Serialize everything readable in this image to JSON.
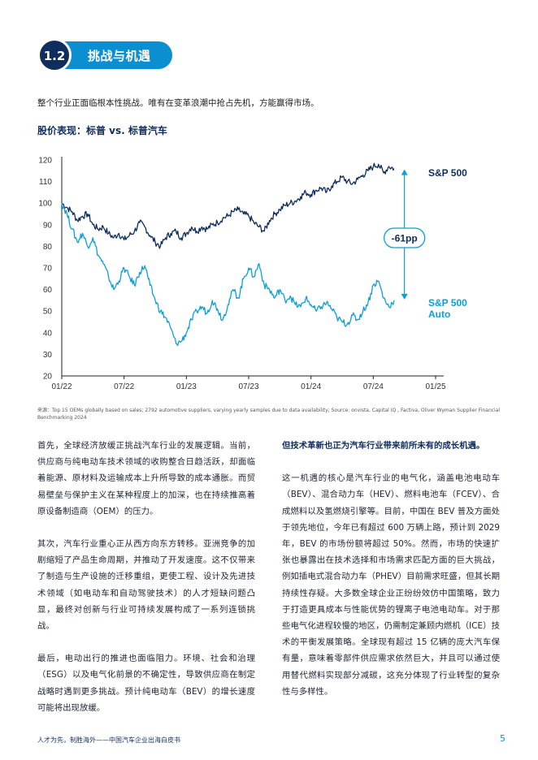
{
  "section": {
    "number": "1.2",
    "title": "挑战与机遇"
  },
  "intro": "整个行业正面临根本性挑战。唯有在变革浪潮中抢占先机，方能赢得市场。",
  "chart_title": "股价表现：标普 vs. 标普汽车",
  "chart_data": {
    "type": "line",
    "title": "股价表现：标普 vs. 标普汽车",
    "x_ticks": [
      "01/22",
      "07/22",
      "01/23",
      "07/23",
      "01/24",
      "07/24",
      "01/25"
    ],
    "y_ticks": [
      20,
      30,
      40,
      50,
      60,
      70,
      80,
      90,
      100,
      110,
      120
    ],
    "ylim": [
      20,
      120
    ],
    "xlim": [
      0,
      36
    ],
    "grid": false,
    "annotation": {
      "label": "-61pp",
      "x": 33,
      "y_from": 116,
      "y_to": 55
    },
    "series": [
      {
        "name": "S&P 500",
        "color": "#0f2e5e",
        "values": [
          [
            0,
            100
          ],
          [
            0.5,
            98
          ],
          [
            1,
            96
          ],
          [
            1.5,
            92
          ],
          [
            2,
            94
          ],
          [
            2.5,
            95
          ],
          [
            3,
            90
          ],
          [
            3.5,
            88
          ],
          [
            4,
            89
          ],
          [
            4.5,
            86
          ],
          [
            5,
            84
          ],
          [
            5.5,
            86
          ],
          [
            6,
            83
          ],
          [
            6.5,
            85
          ],
          [
            7,
            87
          ],
          [
            7.5,
            91
          ],
          [
            8,
            89
          ],
          [
            8.5,
            85
          ],
          [
            9,
            82
          ],
          [
            9.5,
            80
          ],
          [
            10,
            84
          ],
          [
            10.5,
            86
          ],
          [
            11,
            87
          ],
          [
            11.5,
            84
          ],
          [
            12,
            86
          ],
          [
            12.5,
            89
          ],
          [
            13,
            87
          ],
          [
            13.5,
            89
          ],
          [
            14,
            88
          ],
          [
            14.5,
            90
          ],
          [
            15,
            91
          ],
          [
            15.5,
            93
          ],
          [
            16,
            94
          ],
          [
            16.5,
            96
          ],
          [
            17,
            97
          ],
          [
            17.5,
            95
          ],
          [
            18,
            94
          ],
          [
            18.5,
            91
          ],
          [
            19,
            89
          ],
          [
            19.5,
            87
          ],
          [
            20,
            92
          ],
          [
            20.5,
            95
          ],
          [
            21,
            97
          ],
          [
            21.5,
            99
          ],
          [
            22,
            100
          ],
          [
            22.5,
            101
          ],
          [
            23,
            103
          ],
          [
            23.5,
            105
          ],
          [
            24,
            104
          ],
          [
            24.5,
            106
          ],
          [
            25,
            107
          ],
          [
            25.5,
            105
          ],
          [
            26,
            108
          ],
          [
            26.5,
            110
          ],
          [
            27,
            112
          ],
          [
            27.5,
            110
          ],
          [
            28,
            109
          ],
          [
            28.5,
            111
          ],
          [
            29,
            113
          ],
          [
            29.5,
            115
          ],
          [
            30,
            117
          ],
          [
            30.5,
            118
          ],
          [
            31,
            114
          ],
          [
            31.5,
            117
          ],
          [
            32,
            116
          ]
        ]
      },
      {
        "name": "S&P 500 Auto",
        "color": "#0b9fd8",
        "values": [
          [
            0,
            100
          ],
          [
            0.5,
            95
          ],
          [
            1,
            88
          ],
          [
            1.5,
            82
          ],
          [
            2,
            86
          ],
          [
            2.5,
            80
          ],
          [
            3,
            84
          ],
          [
            3.5,
            76
          ],
          [
            4,
            72
          ],
          [
            4.5,
            66
          ],
          [
            5,
            60
          ],
          [
            5.5,
            64
          ],
          [
            6,
            70
          ],
          [
            6.5,
            66
          ],
          [
            7,
            62
          ],
          [
            7.5,
            68
          ],
          [
            8,
            71
          ],
          [
            8.5,
            62
          ],
          [
            9,
            55
          ],
          [
            9.5,
            50
          ],
          [
            10,
            47
          ],
          [
            10.5,
            42
          ],
          [
            11,
            35
          ],
          [
            11.5,
            36
          ],
          [
            12,
            40
          ],
          [
            12.5,
            46
          ],
          [
            13,
            50
          ],
          [
            13.5,
            52
          ],
          [
            14,
            49
          ],
          [
            14.5,
            55
          ],
          [
            15,
            51
          ],
          [
            15.5,
            46
          ],
          [
            16,
            53
          ],
          [
            16.5,
            60
          ],
          [
            17,
            56
          ],
          [
            17.5,
            65
          ],
          [
            18,
            70
          ],
          [
            18.5,
            66
          ],
          [
            19,
            72
          ],
          [
            19.5,
            62
          ],
          [
            20,
            60
          ],
          [
            20.5,
            56
          ],
          [
            21,
            60
          ],
          [
            21.5,
            55
          ],
          [
            22,
            57
          ],
          [
            22.5,
            53
          ],
          [
            23,
            52
          ],
          [
            23.5,
            56
          ],
          [
            24,
            53
          ],
          [
            24.5,
            50
          ],
          [
            25,
            52
          ],
          [
            25.5,
            54
          ],
          [
            26,
            51
          ],
          [
            26.5,
            47
          ],
          [
            27,
            45
          ],
          [
            27.5,
            44
          ],
          [
            28,
            48
          ],
          [
            28.5,
            46
          ],
          [
            29,
            50
          ],
          [
            29.5,
            54
          ],
          [
            30,
            62
          ],
          [
            30.5,
            64
          ],
          [
            31,
            56
          ],
          [
            31.5,
            52
          ],
          [
            32,
            55
          ]
        ]
      }
    ]
  },
  "source": "来源：Top 15 OEMs globally based on sales; 2792 automotive suppliers, varying yearly samples due to data availability; Source: onvista, Capital IQ , Factiva, Oliver Wyman Supplier Financial Benchmarking 2024",
  "left_column": [
    "首先，全球经济放缓正挑战汽车行业的发展逻辑。当前，供应商与纯电动车技术领域的收购整合日趋活跃，却面临着能源、原材料及运输成本上升所导致的成本通胀。而贸易壁垒与保护主义在某种程度上的加深，也在持续推高着原设备制造商（OEM）的压力。",
    "其次，汽车行业重心正从西方向东方转移。亚洲竞争的加剧缩短了产品生命周期，并推动了开发速度。这不仅带来了制造与生产设施的迁移重组，更使工程、设计及先进技术领域（如电动车和自动驾驶技术）的人才短缺问题凸显，最终对创新与行业可持续发展构成了一系列连锁挑战。",
    "最后，电动出行的推进也面临阻力。环境、社会和治理（ESG）以及电气化前景的不确定性，导致供应商在制定战略时遇到更多挑战。预计纯电动车（BEV）的增长速度可能将出现放缓。"
  ],
  "right_column": {
    "heading": "但技术革新也正为汽车行业带来前所未有的成长机遇。",
    "body": "这一机遇的核心是汽车行业的电气化，涵盖电池电动车（BEV）、混合动力车（HEV）、燃料电池车（FCEV）、合成燃料以及氢燃烧引擎等。目前，中国在 BEV 普及方面处于领先地位，今年已有超过 600 万辆上路，预计到 2029 年，BEV 的市场份额将超过 50%。然而，市场的快速扩张也暴露出在技术选择和市场需求匹配方面的巨大挑战，例如插电式混合动力车（PHEV）目前需求旺盛，但其长期持续性存疑。大多数全球企业正纷纷效仿中国策略，致力于打造更具成本与性能优势的锂离子电池电动车。对于那些电气化进程较慢的地区，仍需制定兼顾内燃机（ICE）技术的平衡发展策略。全球现有超过 15 亿辆的庞大汽车保有量，意味着零部件供应需求依然巨大，并且可以通过使用替代燃料实现部分减碳，这充分体现了行业转型的复杂性与多样性。"
  },
  "footer": {
    "text": "人才为先，制胜海外——中国汽车企业出海白皮书",
    "page": "5"
  }
}
